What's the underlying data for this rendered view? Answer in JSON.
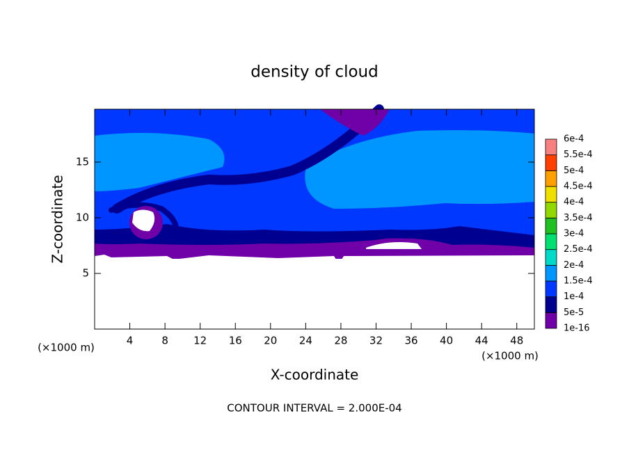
{
  "chart_data": {
    "type": "contour",
    "title": "density of cloud",
    "xlabel": "X-coordinate",
    "ylabel": "Z-coordinate",
    "x_unit_label": "(×1000 m)",
    "footer": "CONTOUR INTERVAL = 2.000E-04",
    "xlim": [
      0,
      50
    ],
    "xticks": [
      4,
      8,
      12,
      16,
      20,
      24,
      28,
      32,
      36,
      40,
      44,
      48
    ],
    "ylim": [
      0,
      19.75
    ],
    "yticks": [
      5,
      10,
      15
    ],
    "colorbar": {
      "levels": [
        {
          "value": 1e-16,
          "label": "1e-16"
        },
        {
          "value": 5e-05,
          "label": "5e-5"
        },
        {
          "value": 0.0001,
          "label": "1e-4"
        },
        {
          "value": 0.00015,
          "label": "1.5e-4"
        },
        {
          "value": 0.0002,
          "label": "2e-4"
        },
        {
          "value": 0.00025,
          "label": "2.5e-4"
        },
        {
          "value": 0.0003,
          "label": "3e-4"
        },
        {
          "value": 0.00035,
          "label": "3.5e-4"
        },
        {
          "value": 0.0004,
          "label": "4e-4"
        },
        {
          "value": 0.00045,
          "label": "4.5e-4"
        },
        {
          "value": 0.0005,
          "label": "5e-4"
        },
        {
          "value": 0.00055,
          "label": "5.5e-4"
        },
        {
          "value": 0.0006,
          "label": "6e-4"
        }
      ],
      "colors": [
        "#7000a8",
        "#000090",
        "#0038ff",
        "#0096ff",
        "#00d8c8",
        "#00e070",
        "#20c020",
        "#90d800",
        "#f0e000",
        "#ffa000",
        "#ff4000",
        "#f88080"
      ]
    }
  }
}
